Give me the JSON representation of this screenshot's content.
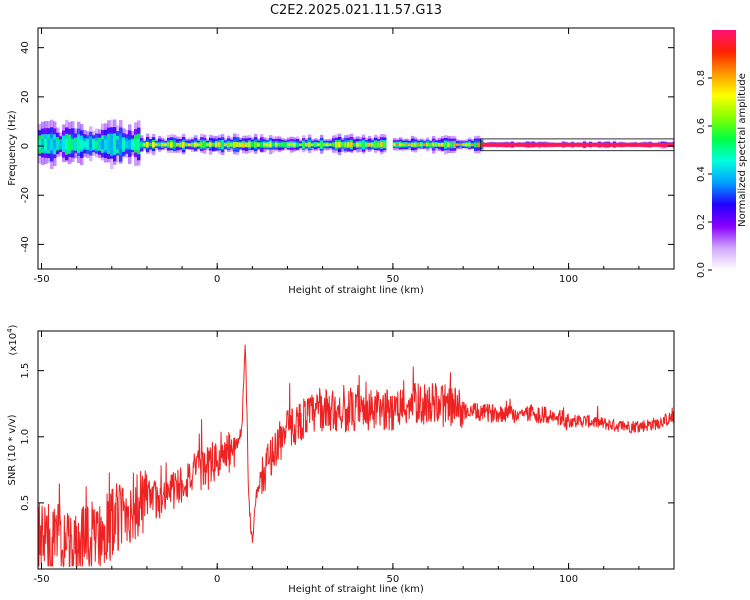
{
  "figure": {
    "title": "C2E2.2025.021.11.57.G13"
  },
  "chart_data": [
    {
      "type": "heatmap",
      "xlabel": "Height of straight line (km)",
      "ylabel": "Frequency (Hz)",
      "xlim": [
        -51,
        130
      ],
      "ylim": [
        -50,
        48
      ],
      "xticks": [
        -50,
        0,
        50,
        100
      ],
      "yticks": [
        -40,
        -20,
        0,
        20,
        40
      ],
      "colorbar": {
        "label": "Normalized spectral amplitude",
        "range": [
          0,
          1
        ],
        "ticks": [
          0.0,
          0.2,
          0.4,
          0.6,
          0.8
        ],
        "colors": [
          "#ffffff",
          "#d2a8ff",
          "#8800ff",
          "#2200ff",
          "#00a0ff",
          "#00ffdd",
          "#00ff44",
          "#88ff00",
          "#ffff00",
          "#ff9900",
          "#ff2200",
          "#ff1177"
        ]
      },
      "ridge": {
        "frequency_hz": 0.5,
        "segments": [
          {
            "x_start": -51,
            "x_end": -22,
            "spread_hz": 9,
            "amplitude": 0.5
          },
          {
            "x_start": -22,
            "x_end": 48,
            "spread_hz": 4,
            "amplitude": 0.75
          },
          {
            "x_start": 50,
            "x_end": 75,
            "spread_hz": 3.5,
            "amplitude": 0.8
          },
          {
            "x_start": 75,
            "x_end": 130,
            "spread_hz": 1.5,
            "amplitude": 0.95
          }
        ]
      }
    },
    {
      "type": "line",
      "xlabel": "Height of straight line (km)",
      "ylabel": "SNR (10 * v/v)",
      "y_multiplier_label": "(x10",
      "y_multiplier_exp": "4",
      "y_multiplier_close": ")",
      "xlim": [
        -51,
        130
      ],
      "ylim": [
        0,
        1.8
      ],
      "xticks": [
        -50,
        0,
        50,
        100
      ],
      "yticks": [
        0.5,
        1.0,
        1.5
      ],
      "series": [
        {
          "color": "#ee2222",
          "points": [
            [
              -51,
              0.25
            ],
            [
              -45,
              0.2
            ],
            [
              -40,
              0.15
            ],
            [
              -35,
              0.25
            ],
            [
              -30,
              0.35
            ],
            [
              -25,
              0.45
            ],
            [
              -20,
              0.5
            ],
            [
              -15,
              0.55
            ],
            [
              -10,
              0.65
            ],
            [
              -5,
              0.75
            ],
            [
              0,
              0.82
            ],
            [
              5,
              0.9
            ],
            [
              7,
              1.05
            ],
            [
              8,
              1.75
            ],
            [
              9,
              0.5
            ],
            [
              10,
              0.2
            ],
            [
              11,
              0.55
            ],
            [
              15,
              0.85
            ],
            [
              20,
              1.05
            ],
            [
              25,
              1.15
            ],
            [
              30,
              1.2
            ],
            [
              35,
              1.2
            ],
            [
              40,
              1.18
            ],
            [
              45,
              1.2
            ],
            [
              50,
              1.2
            ],
            [
              55,
              1.25
            ],
            [
              60,
              1.25
            ],
            [
              65,
              1.25
            ],
            [
              70,
              1.2
            ],
            [
              75,
              1.18
            ],
            [
              80,
              1.18
            ],
            [
              85,
              1.17
            ],
            [
              90,
              1.18
            ],
            [
              95,
              1.15
            ],
            [
              100,
              1.12
            ],
            [
              105,
              1.12
            ],
            [
              110,
              1.1
            ],
            [
              115,
              1.08
            ],
            [
              120,
              1.08
            ],
            [
              125,
              1.1
            ],
            [
              130,
              1.15
            ]
          ]
        }
      ]
    }
  ]
}
